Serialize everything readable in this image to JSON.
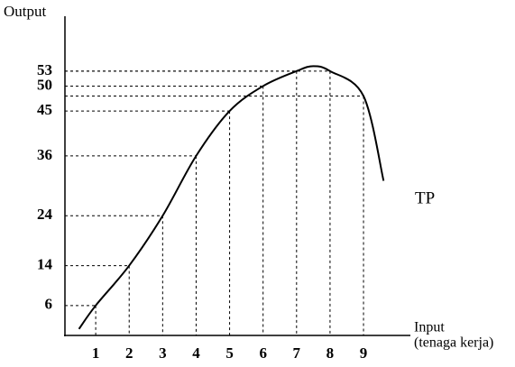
{
  "chart_data": {
    "type": "line",
    "y_label": "Output",
    "x_label": [
      "Input",
      "(tenaga kerja)"
    ],
    "x": [
      0.5,
      1,
      2,
      3,
      4,
      5,
      6,
      7,
      7.5,
      8,
      9,
      9.6
    ],
    "series": [
      {
        "name": "TP",
        "color": "#000000",
        "values": [
          1.3,
          6,
          14,
          24,
          36,
          45,
          50,
          53,
          54,
          53,
          48,
          31
        ]
      }
    ],
    "xlim": [
      0,
      10.4
    ],
    "ylim": [
      0,
      64
    ],
    "xticks": [
      1,
      2,
      3,
      4,
      5,
      6,
      7,
      8,
      9
    ],
    "yticks": [
      6,
      14,
      24,
      36,
      45,
      50,
      53
    ]
  }
}
